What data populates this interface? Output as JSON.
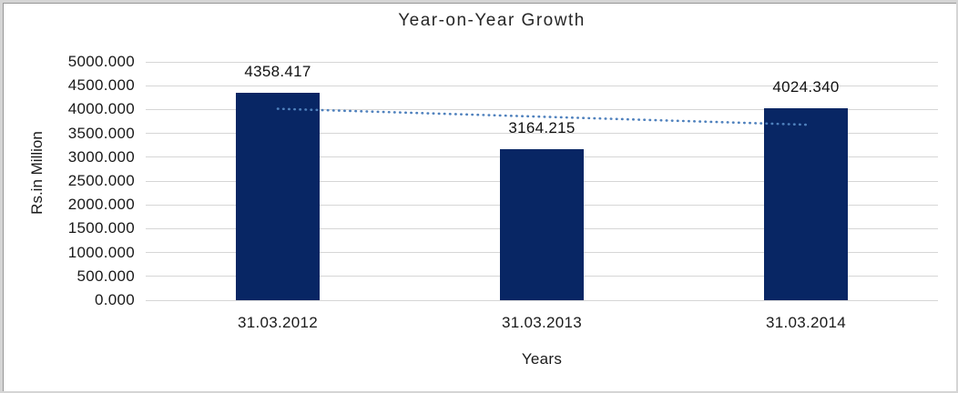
{
  "chart_data": {
    "type": "bar",
    "title": "Year-on-Year Growth",
    "xlabel": "Years",
    "ylabel": "Rs.in Million",
    "categories": [
      "31.03.2012",
      "31.03.2013",
      "31.03.2014"
    ],
    "values": [
      4358.417,
      3164.215,
      4024.34
    ],
    "data_labels": [
      "4358.417",
      "3164.215",
      "4024.340"
    ],
    "ylim": [
      0,
      5000
    ],
    "ytick_step": 500,
    "ytick_labels": [
      "0.000",
      "500.000",
      "1000.000",
      "1500.000",
      "2000.000",
      "2500.000",
      "3000.000",
      "3500.000",
      "4000.000",
      "4500.000",
      "5000.000"
    ],
    "grid": true,
    "legend": "none",
    "trendline": {
      "type": "linear",
      "style": "dotted",
      "values": [
        4016.0,
        3849.0,
        3682.0
      ]
    },
    "colors": {
      "bar": "#082664",
      "trendline": "#4F81BD",
      "gridline": "#D6D6D6",
      "title_text": "#262626",
      "label_text": "#1A1A1A"
    }
  }
}
